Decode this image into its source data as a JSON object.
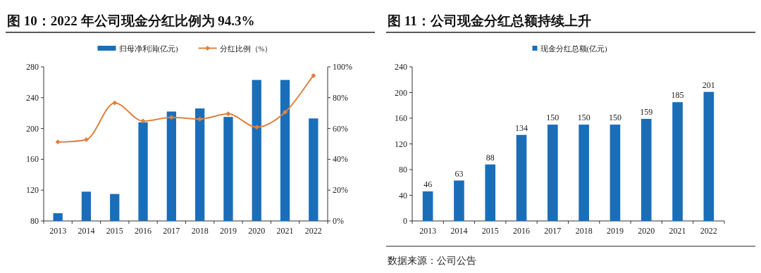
{
  "chart_data": [
    {
      "type": "bar",
      "title": "图 10：2022 年公司现金分红比例为 94.3%",
      "categories": [
        "2013",
        "2014",
        "2015",
        "2016",
        "2017",
        "2018",
        "2019",
        "2020",
        "2021",
        "2022"
      ],
      "series": [
        {
          "name": "归母净利润(亿元)",
          "color": "#1a6eb8",
          "values": [
            90,
            118,
            115,
            208,
            222,
            226,
            215,
            263,
            263,
            213
          ]
        },
        {
          "name": "分红比例（%）",
          "type": "line",
          "axis": "y2",
          "color": "#e0813f",
          "marker": "diamond",
          "values": [
            51.2,
            52.7,
            76.6,
            64.8,
            67.2,
            66.1,
            69.5,
            60.8,
            70.5,
            94.3
          ]
        }
      ],
      "ylim": [
        80,
        280
      ],
      "yticks": [
        80,
        120,
        160,
        200,
        240,
        280
      ],
      "y2lim": [
        0,
        100
      ],
      "y2ticks": [
        {
          "value": 0,
          "label": "0%"
        },
        {
          "value": 20,
          "label": "20%"
        },
        {
          "value": 40,
          "label": "40%"
        },
        {
          "value": 60,
          "label": "60%"
        },
        {
          "value": 80,
          "label": "80%"
        },
        {
          "value": 100,
          "label": "100%"
        }
      ],
      "legend": "top",
      "grid": false
    },
    {
      "type": "bar",
      "title": "图 11：公司现金分红总额持续上升",
      "categories": [
        "2013",
        "2014",
        "2015",
        "2016",
        "2017",
        "2018",
        "2019",
        "2020",
        "2021",
        "2022"
      ],
      "series": [
        {
          "name": "现金分红总额(亿元)",
          "color": "#1a6eb8",
          "values": [
            46,
            63,
            88,
            134,
            150,
            150,
            150,
            159,
            185,
            201
          ]
        }
      ],
      "ylim": [
        0,
        240
      ],
      "yticks": [
        0,
        40,
        80,
        120,
        160,
        200,
        240
      ],
      "data_labels": true,
      "legend": "top",
      "grid": false,
      "annotations": [
        "数据来源：公司公告"
      ]
    }
  ]
}
